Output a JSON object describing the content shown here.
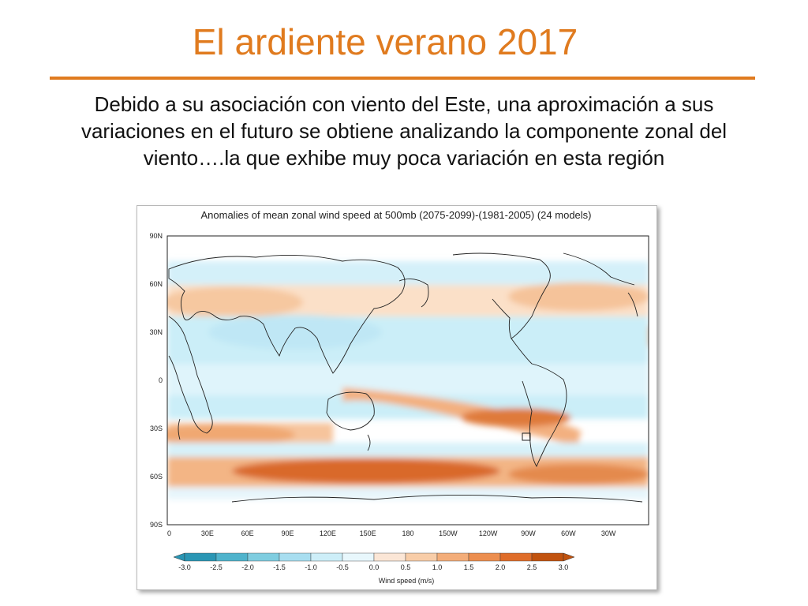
{
  "slide": {
    "title": "El ardiente verano 2017",
    "body_lines": [
      "Debido a su asociación con viento del Este, una aproximación a sus",
      "variaciones en el futuro se obtiene analizando la componente zonal del",
      "viento….la que exhibe muy poca variación en esta región"
    ],
    "accent_color": "#e07b1f"
  },
  "figure": {
    "title": "Anomalies of mean zonal wind speed at 500mb (2075-2099)-(1981-2005) (24 models)",
    "y_ticks": [
      "90N",
      "60N",
      "30N",
      "0",
      "30S",
      "60S",
      "90S"
    ],
    "x_ticks": [
      "0",
      "30E",
      "60E",
      "90E",
      "120E",
      "150E",
      "180",
      "150W",
      "120W",
      "90W",
      "60W",
      "30W"
    ],
    "colorbar": {
      "label": "Wind speed (m/s)",
      "ticks": [
        "-3.0",
        "-2.5",
        "-2.0",
        "-1.5",
        "-1.0",
        "-0.5",
        "0.0",
        "0.5",
        "1.0",
        "1.5",
        "2.0",
        "2.5",
        "3.0"
      ],
      "colors": [
        "#2a96b4",
        "#4fb3cc",
        "#7fcde0",
        "#a8def0",
        "#cdeef8",
        "#e8f7fc",
        "#fbe6d6",
        "#f8cda8",
        "#f3ad79",
        "#ec8e4f",
        "#df6d2a",
        "#c1530f"
      ]
    }
  }
}
